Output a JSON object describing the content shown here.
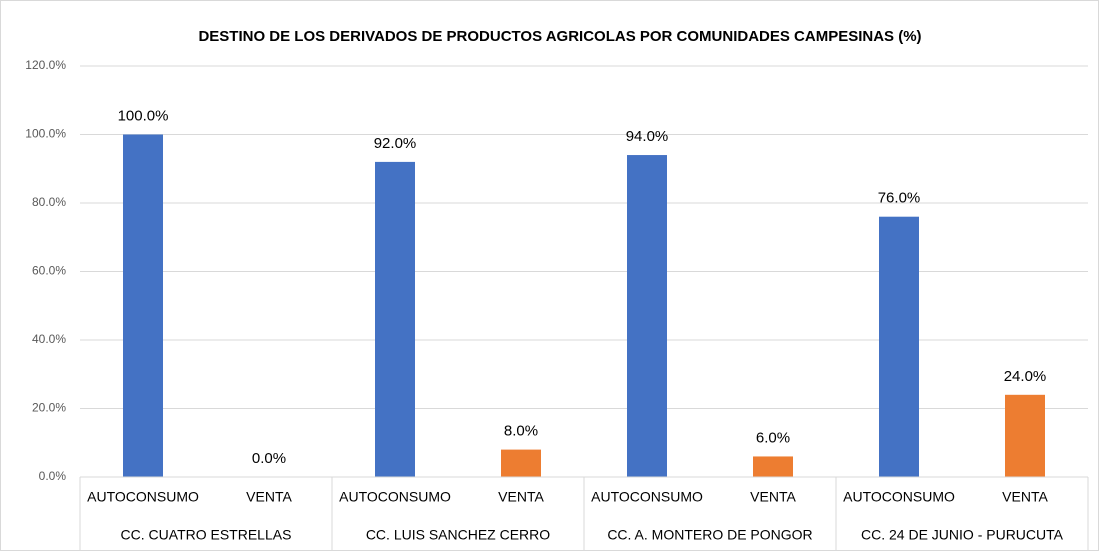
{
  "chart_data": {
    "type": "bar",
    "title": "DESTINO DE LOS DERIVADOS DE PRODUCTOS AGRICOLAS POR COMUNIDADES CAMPESINAS (%)",
    "colors": [
      "#4472c4",
      "#ed7d31"
    ],
    "groups": [
      {
        "name": "CC. CUATRO ESTRELLAS",
        "categories": [
          "AUTOCONSUMO",
          "VENTA"
        ],
        "values": [
          100,
          0
        ],
        "value_labels": [
          "100.0%",
          "0.0%"
        ]
      },
      {
        "name": "CC. LUIS SANCHEZ CERRO",
        "categories": [
          "AUTOCONSUMO",
          "VENTA"
        ],
        "values": [
          92,
          8
        ],
        "value_labels": [
          "92.0%",
          "8.0%"
        ]
      },
      {
        "name": "CC. A. MONTERO DE PONGOR",
        "categories": [
          "AUTOCONSUMO",
          "VENTA"
        ],
        "values": [
          94,
          6
        ],
        "value_labels": [
          "94.0%",
          "6.0%"
        ]
      },
      {
        "name": "CC. 24 DE JUNIO - PURUCUTA",
        "categories": [
          "AUTOCONSUMO",
          "VENTA"
        ],
        "values": [
          76,
          24
        ],
        "value_labels": [
          "76.0%",
          "24.0%"
        ]
      }
    ],
    "ylim": [
      0,
      120
    ],
    "yticks": [
      {
        "value": 0,
        "label": "0.0%"
      },
      {
        "value": 20,
        "label": "20.0%"
      },
      {
        "value": 40,
        "label": "40.0%"
      },
      {
        "value": 60,
        "label": "60.0%"
      },
      {
        "value": 80,
        "label": "80.0%"
      },
      {
        "value": 100,
        "label": "100.0%"
      },
      {
        "value": 120,
        "label": "120.0%"
      }
    ],
    "grid": true
  }
}
